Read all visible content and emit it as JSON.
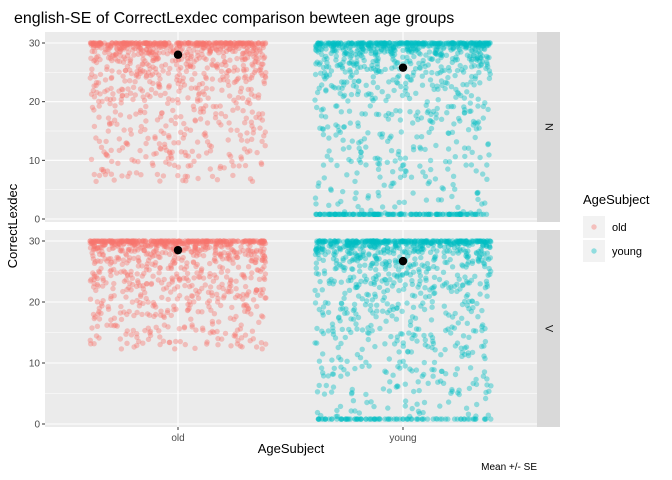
{
  "chart_data": {
    "type": "scatter",
    "title": "english-SE of CorrectLexdec comparison bewteen age groups",
    "xlabel": "AgeSubject",
    "ylabel": "CorrectLexdec",
    "caption": "Mean +/- SE",
    "categories": [
      "old",
      "young"
    ],
    "ylim": [
      0,
      30
    ],
    "yticks": [
      0,
      10,
      20,
      30
    ],
    "grid": true,
    "legend": {
      "title": "AgeSubject",
      "position": "right",
      "entries": [
        {
          "label": "old",
          "color": "#F8766D"
        },
        {
          "label": "young",
          "color": "#00BFC4"
        }
      ]
    },
    "facets": [
      {
        "label": "N",
        "means": [
          {
            "group": "old",
            "mean": 28.0
          },
          {
            "group": "young",
            "mean": 25.8
          }
        ]
      },
      {
        "label": "V",
        "means": [
          {
            "group": "old",
            "mean": 28.5
          },
          {
            "group": "young",
            "mean": 26.7
          }
        ]
      }
    ],
    "mean_point_color": "#000000",
    "panel_background": "#EBEBEB",
    "strip_background": "#D9D9D9"
  }
}
